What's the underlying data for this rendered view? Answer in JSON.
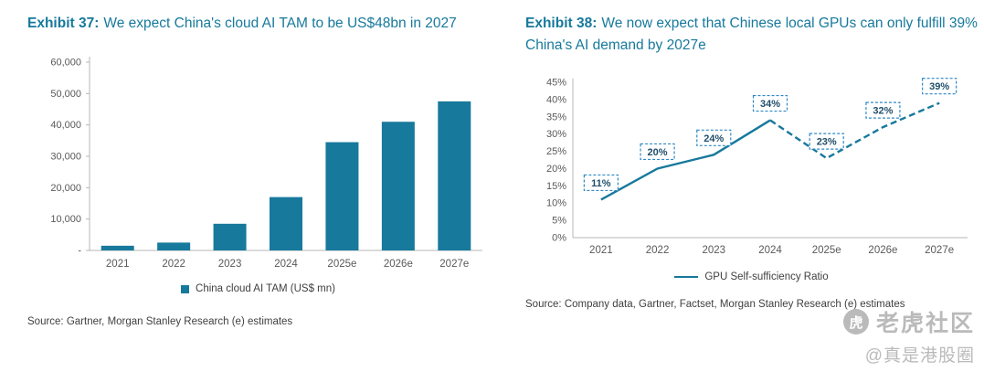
{
  "accent_color": "#17799c",
  "exhibit37": {
    "label": "Exhibit 37:",
    "title": "We expect China's cloud AI TAM to be US$48bn in 2027",
    "source": "Source: Gartner, Morgan Stanley Research (e) estimates"
  },
  "exhibit38": {
    "label": "Exhibit 38:",
    "title": "We now expect that Chinese local GPUs can only fulfill 39% China's AI demand by 2027e",
    "source": "Source: Company data, Gartner, Factset, Morgan Stanley Research (e) estimates"
  },
  "watermark": {
    "logo": "tiger-logo",
    "community": "老虎社区",
    "handle": "@真是港股圈"
  },
  "chart_data": [
    {
      "type": "bar",
      "title": "We expect China's cloud AI TAM to be US$48bn in 2027",
      "categories": [
        "2021",
        "2022",
        "2023",
        "2024",
        "2025e",
        "2026e",
        "2027e"
      ],
      "values": [
        1500,
        2500,
        8500,
        17000,
        34500,
        41000,
        47500
      ],
      "xlabel": "",
      "ylabel": "",
      "ylim": [
        0,
        60000
      ],
      "ytick_values": [
        0,
        10000,
        20000,
        30000,
        40000,
        50000,
        60000
      ],
      "ytick_labels": [
        "-",
        "10,000",
        "20,000",
        "30,000",
        "40,000",
        "50,000",
        "60,000"
      ],
      "legend": "China cloud AI TAM (US$ mn)",
      "legend_position": "bottom",
      "grid": false,
      "color": "#17799c"
    },
    {
      "type": "line",
      "title": "We now expect that Chinese local GPUs can only fulfill 39% China's AI demand by 2027e",
      "categories": [
        "2021",
        "2022",
        "2023",
        "2024",
        "2025e",
        "2026e",
        "2027e"
      ],
      "values": [
        11,
        20,
        24,
        34,
        23,
        32,
        39
      ],
      "data_labels": [
        "11%",
        "20%",
        "24%",
        "34%",
        "23%",
        "32%",
        "39%"
      ],
      "xlabel": "",
      "ylabel": "",
      "ylim": [
        0,
        45
      ],
      "ytick_values": [
        0,
        5,
        10,
        15,
        20,
        25,
        30,
        35,
        40,
        45
      ],
      "ytick_labels": [
        "0%",
        "5%",
        "10%",
        "15%",
        "20%",
        "25%",
        "30%",
        "35%",
        "40%",
        "45%"
      ],
      "solid_until": 3,
      "line_style_note": "solid 2021-2024 actual, dashed 2024-2027e estimates",
      "legend": "GPU Self-sufficiency Ratio",
      "legend_position": "bottom",
      "grid": false,
      "color": "#17799c",
      "label_border": "#2f88c5",
      "label_text_color": "#1f4e6b"
    }
  ]
}
